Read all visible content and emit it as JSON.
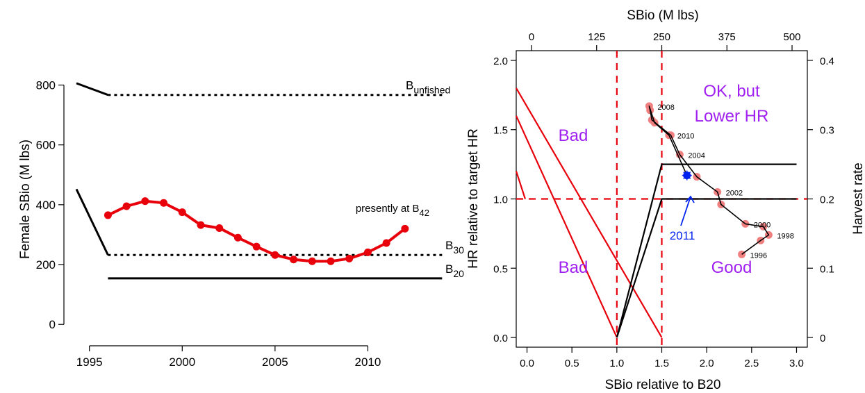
{
  "chart_data": [
    {
      "type": "line",
      "ylabel": "Female SBio (M lbs)",
      "xlabel": "",
      "xlim": [
        1994.3,
        2014.7
      ],
      "ylim": [
        -25,
        880
      ],
      "x_ticks": [
        "1995",
        "2000",
        "2005",
        "2010"
      ],
      "y_ticks": [
        "0",
        "200",
        "400",
        "600",
        "800"
      ],
      "grid": false,
      "series": [
        {
          "name": "",
          "color": "#e8000b",
          "x": [
            1996,
            1997,
            1998,
            1999,
            2000,
            2001,
            2002,
            2003,
            2004,
            2005,
            2006,
            2007,
            2008,
            2009,
            2010,
            2011,
            2012
          ],
          "y": [
            365,
            395,
            412,
            406,
            375,
            332,
            322,
            290,
            260,
            232,
            217,
            211,
            211,
            220,
            241,
            272,
            320
          ]
        }
      ],
      "reference_lines": [
        {
          "label_main": "B",
          "label_sub": "unfished",
          "style": "dotted",
          "x": [
            1996,
            2014
          ],
          "y": 767,
          "lead_in": {
            "x": [
              1994.3,
              1996
            ],
            "y": [
              806,
              767
            ]
          }
        },
        {
          "label_main": "B",
          "label_sub": "30",
          "style": "dotted",
          "x": [
            1996,
            2014
          ],
          "y": 232,
          "lead_in": {
            "x": [
              1994.3,
              1996
            ],
            "y": [
              452,
              232
            ]
          }
        },
        {
          "label_main": "B",
          "label_sub": "20",
          "style": "solid",
          "x": [
            1996,
            2014
          ],
          "y": 154
        }
      ],
      "annotation": {
        "text_main": "presently at B",
        "text_sub": "42"
      }
    },
    {
      "type": "scatter",
      "xlabel": "SBio relative to B20",
      "ylabel": "HR relative to target HR",
      "x2label": "SBio (M lbs)",
      "y2label": "Harvest rate",
      "xlim": [
        -0.12,
        3.12
      ],
      "ylim": [
        -0.07,
        2.07
      ],
      "x_ticks": [
        "0.0",
        "0.5",
        "1.0",
        "1.5",
        "2.0",
        "2.5",
        "3.0"
      ],
      "y_ticks": [
        "0.0",
        "0.5",
        "1.0",
        "1.5",
        "2.0"
      ],
      "x2_ticks": [
        "0",
        "125",
        "250",
        "375",
        "500"
      ],
      "y2_ticks": [
        "0",
        "0.1",
        "0.2",
        "0.3",
        "0.4"
      ],
      "grid": false,
      "trajectory": {
        "labels": [
          "1996",
          "1998",
          "2000",
          "2002",
          "2004",
          "2008",
          "2010"
        ],
        "points": [
          {
            "year": "1996",
            "x": 2.39,
            "y": 0.6,
            "labeled": true
          },
          {
            "year": "1997",
            "x": 2.6,
            "y": 0.7,
            "labeled": false
          },
          {
            "year": "1998",
            "x": 2.69,
            "y": 0.74,
            "labeled": true
          },
          {
            "year": "1999",
            "x": 2.63,
            "y": 0.8,
            "labeled": false
          },
          {
            "year": "2000",
            "x": 2.43,
            "y": 0.82,
            "labeled": true
          },
          {
            "year": "2001",
            "x": 2.16,
            "y": 0.96,
            "labeled": false
          },
          {
            "year": "2002",
            "x": 2.12,
            "y": 1.05,
            "labeled": true
          },
          {
            "year": "2003",
            "x": 1.89,
            "y": 1.16,
            "labeled": false
          },
          {
            "year": "2004",
            "x": 1.7,
            "y": 1.32,
            "labeled": true
          },
          {
            "year": "2005",
            "x": 1.6,
            "y": 1.46,
            "labeled": false
          },
          {
            "year": "2006",
            "x": 1.39,
            "y": 1.57,
            "labeled": false
          },
          {
            "year": "2007",
            "x": 1.37,
            "y": 1.64,
            "labeled": false
          },
          {
            "year": "2008",
            "x": 1.36,
            "y": 1.67,
            "labeled": true
          },
          {
            "year": "2009",
            "x": 1.42,
            "y": 1.55,
            "labeled": false
          },
          {
            "year": "2010",
            "x": 1.58,
            "y": 1.46,
            "labeled": true
          },
          {
            "year": "2011",
            "x": 1.78,
            "y": 1.17,
            "labeled": false
          }
        ],
        "current": {
          "label": "2011",
          "x": 1.78,
          "y": 1.17,
          "color": "#0022ee"
        }
      },
      "reference_lines": {
        "hr_target_y": 1.0,
        "b20_x": 1.0,
        "b30_x": 1.5
      },
      "control_rules": [
        {
          "color": "#000000",
          "x": [
            1.0,
            1.5,
            3.0
          ],
          "y": [
            0.0,
            1.25,
            1.25
          ]
        },
        {
          "color": "#000000",
          "x": [
            1.0,
            1.5,
            3.0
          ],
          "y": [
            0.0,
            1.0,
            1.0
          ]
        }
      ],
      "red_rules": [
        {
          "x": [
            -0.12,
            1.5
          ],
          "y": [
            1.8,
            0.0
          ]
        },
        {
          "x": [
            -0.12,
            1.0
          ],
          "y": [
            1.6,
            0.0
          ]
        },
        {
          "x": [
            -0.12,
            -0.02
          ],
          "y": [
            1.2,
            1.0
          ]
        }
      ],
      "zones": [
        {
          "lines": [
            "Bad"
          ]
        },
        {
          "lines": [
            "Bad"
          ]
        },
        {
          "lines": [
            "OK, but",
            "Lower HR"
          ]
        },
        {
          "lines": [
            "Good"
          ]
        }
      ],
      "colors": {
        "zone_text": "#a020f0",
        "reference": "#e8000b",
        "points": "#f08080"
      }
    }
  ]
}
